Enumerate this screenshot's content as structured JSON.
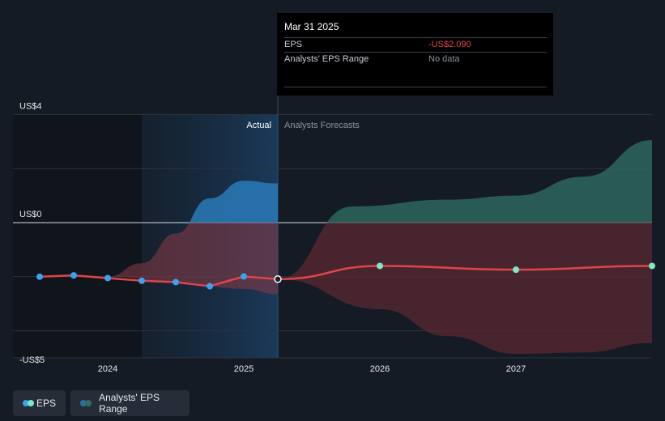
{
  "chart_data": {
    "type": "line",
    "y_axis": {
      "ticks": [
        {
          "value": 4,
          "label": "US$4"
        },
        {
          "value": 0,
          "label": "US$0"
        },
        {
          "value": -5,
          "label": "-US$5"
        }
      ],
      "ylim": [
        -5,
        4
      ]
    },
    "x_axis": {
      "ticks": [
        {
          "value": 2024,
          "label": "2024"
        },
        {
          "value": 2025,
          "label": "2025"
        },
        {
          "value": 2026,
          "label": "2026"
        },
        {
          "value": 2027,
          "label": "2027"
        }
      ],
      "xlim": [
        2023.1,
        2028.0
      ]
    },
    "actual_label": "Actual",
    "forecast_label": "Analysts Forecasts",
    "divider_x": 2025.25,
    "series": [
      {
        "name": "EPS",
        "color": "#e0444a",
        "actual": [
          {
            "x": 2023.5,
            "y": -2.0
          },
          {
            "x": 2023.75,
            "y": -1.95
          },
          {
            "x": 2024.0,
            "y": -2.05
          },
          {
            "x": 2024.25,
            "y": -2.15
          },
          {
            "x": 2024.5,
            "y": -2.2
          },
          {
            "x": 2024.75,
            "y": -2.35
          },
          {
            "x": 2025.0,
            "y": -1.99
          },
          {
            "x": 2025.25,
            "y": -2.09
          }
        ],
        "forecast": [
          {
            "x": 2025.25,
            "y": -2.09
          },
          {
            "x": 2026.0,
            "y": -1.6
          },
          {
            "x": 2027.0,
            "y": -1.74
          },
          {
            "x": 2028.0,
            "y": -1.6
          }
        ]
      },
      {
        "name": "Analysts' EPS Range",
        "color": "#2b5b56",
        "forecast_high": [
          {
            "x": 2025.25,
            "y": -2.09
          },
          {
            "x": 2025.8,
            "y": 0.6
          },
          {
            "x": 2026.5,
            "y": 0.85
          },
          {
            "x": 2027.0,
            "y": 1.0
          },
          {
            "x": 2027.5,
            "y": 1.7
          },
          {
            "x": 2028.0,
            "y": 3.05
          }
        ],
        "forecast_low": [
          {
            "x": 2025.25,
            "y": -2.09
          },
          {
            "x": 2026.0,
            "y": -3.2
          },
          {
            "x": 2026.5,
            "y": -4.2
          },
          {
            "x": 2027.0,
            "y": -4.85
          },
          {
            "x": 2027.5,
            "y": -4.8
          },
          {
            "x": 2028.0,
            "y": -4.45
          }
        ],
        "actual_high": [
          {
            "x": 2024.0,
            "y": -2.0
          },
          {
            "x": 2024.25,
            "y": -1.5
          },
          {
            "x": 2024.5,
            "y": -0.4
          },
          {
            "x": 2024.75,
            "y": 0.9
          },
          {
            "x": 2025.0,
            "y": 1.55
          },
          {
            "x": 2025.25,
            "y": 1.45
          }
        ],
        "actual_low": [
          {
            "x": 2024.0,
            "y": -2.0
          },
          {
            "x": 2024.5,
            "y": -2.2
          },
          {
            "x": 2025.0,
            "y": -2.45
          },
          {
            "x": 2025.25,
            "y": -2.65
          }
        ]
      }
    ],
    "legend": [
      {
        "label": "EPS",
        "colors": [
          "#3aa3f0",
          "#7fe6c6"
        ]
      },
      {
        "label": "Analysts' EPS Range",
        "colors": [
          "#2e6fa3",
          "#2f6e68"
        ]
      }
    ],
    "grid": true
  },
  "tooltip": {
    "title": "Mar 31 2025",
    "rows": [
      {
        "key": "EPS",
        "value": "-US$2.090"
      },
      {
        "key": "Analysts' EPS Range",
        "value": "No data"
      }
    ]
  }
}
